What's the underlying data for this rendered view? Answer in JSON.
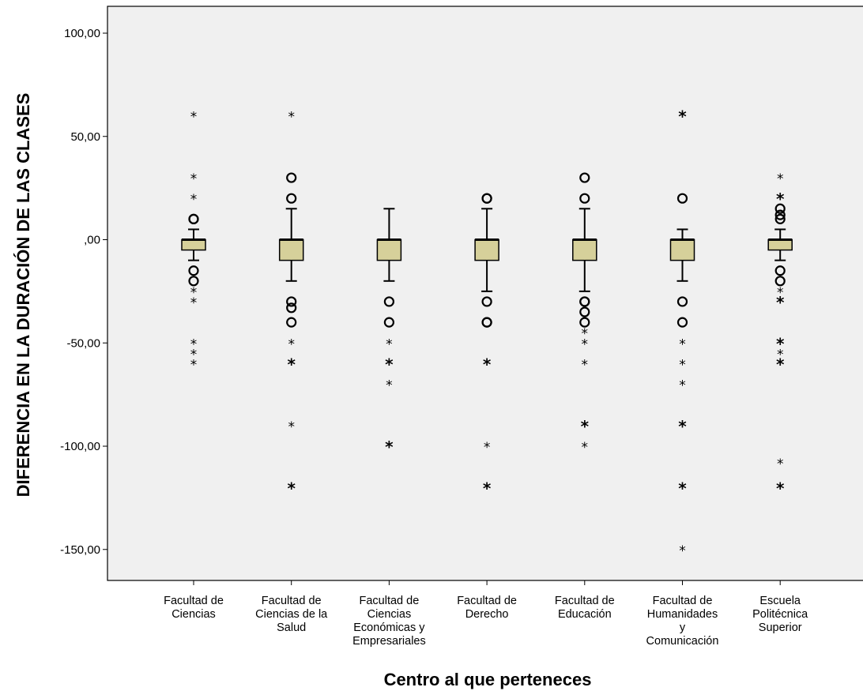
{
  "chart_data": {
    "type": "boxplot",
    "ylabel": "DIFERENCIA EN LA DURACIÓN DE LAS CLASES",
    "xlabel": "Centro al que perteneces",
    "ylim": [
      -165,
      113
    ],
    "yticks": [
      {
        "value": 100,
        "label": "100,00"
      },
      {
        "value": 50,
        "label": "50,00"
      },
      {
        "value": 0,
        "label": ",00"
      },
      {
        "value": -50,
        "label": "-50,00"
      },
      {
        "value": -100,
        "label": "-100,00"
      },
      {
        "value": -150,
        "label": "-150,00"
      }
    ],
    "colors": {
      "box_fill": "#d6d09a",
      "plot_bg": "#f0f0f0",
      "border": "#000000"
    },
    "groups": [
      {
        "label_lines": [
          "Facultad de",
          "Ciencias"
        ],
        "box": {
          "q1": -5,
          "median": 0,
          "q3": 0,
          "whisker_low": -10,
          "whisker_high": 5
        },
        "circles": [
          10,
          10,
          -15,
          -20
        ],
        "stars": [
          60,
          30,
          20,
          -25,
          -30,
          -50,
          -55,
          -60
        ],
        "bold_stars": []
      },
      {
        "label_lines": [
          "Facultad de",
          "Ciencias de la",
          "Salud"
        ],
        "box": {
          "q1": -10,
          "median": 0,
          "q3": 0,
          "whisker_low": -20,
          "whisker_high": 15
        },
        "circles": [
          30,
          20,
          -30,
          -33,
          -40
        ],
        "stars": [
          60,
          -50,
          -90
        ],
        "bold_stars": [
          -60,
          -120
        ]
      },
      {
        "label_lines": [
          "Facultad de",
          "Ciencias",
          "Económicas y",
          "Empresariales"
        ],
        "box": {
          "q1": -10,
          "median": 0,
          "q3": 0,
          "whisker_low": -20,
          "whisker_high": 15
        },
        "circles": [
          -30,
          -40
        ],
        "stars": [
          -50,
          -70
        ],
        "bold_stars": [
          -60,
          -100
        ]
      },
      {
        "label_lines": [
          "Facultad de",
          "Derecho"
        ],
        "box": {
          "q1": -10,
          "median": 0,
          "q3": 0,
          "whisker_low": -25,
          "whisker_high": 15
        },
        "circles": [
          20,
          20,
          -30,
          -40,
          -40
        ],
        "stars": [
          -100
        ],
        "bold_stars": [
          -60,
          -120
        ]
      },
      {
        "label_lines": [
          "Facultad de",
          "Educación"
        ],
        "box": {
          "q1": -10,
          "median": 0,
          "q3": 0,
          "whisker_low": -25,
          "whisker_high": 15
        },
        "circles": [
          30,
          20,
          -30,
          -35,
          -40,
          -30
        ],
        "stars": [
          -45,
          -50,
          -60,
          -100
        ],
        "bold_stars": [
          -90
        ]
      },
      {
        "label_lines": [
          "Facultad de",
          "Humanidades",
          "y",
          "Comunicación"
        ],
        "box": {
          "q1": -10,
          "median": 0,
          "q3": 0,
          "whisker_low": -20,
          "whisker_high": 5
        },
        "circles": [
          20,
          -30,
          -40
        ],
        "stars": [
          -50,
          -60,
          -70,
          -150
        ],
        "bold_stars": [
          60,
          -90,
          -120
        ]
      },
      {
        "label_lines": [
          "Escuela",
          "Politécnica",
          "Superior"
        ],
        "box": {
          "q1": -5,
          "median": 0,
          "q3": 0,
          "whisker_low": -10,
          "whisker_high": 5
        },
        "circles": [
          15,
          12,
          10,
          -15,
          -20
        ],
        "stars": [
          30,
          -25,
          -55,
          -108
        ],
        "bold_stars": [
          20,
          -30,
          -50,
          -60,
          -120
        ]
      }
    ]
  }
}
